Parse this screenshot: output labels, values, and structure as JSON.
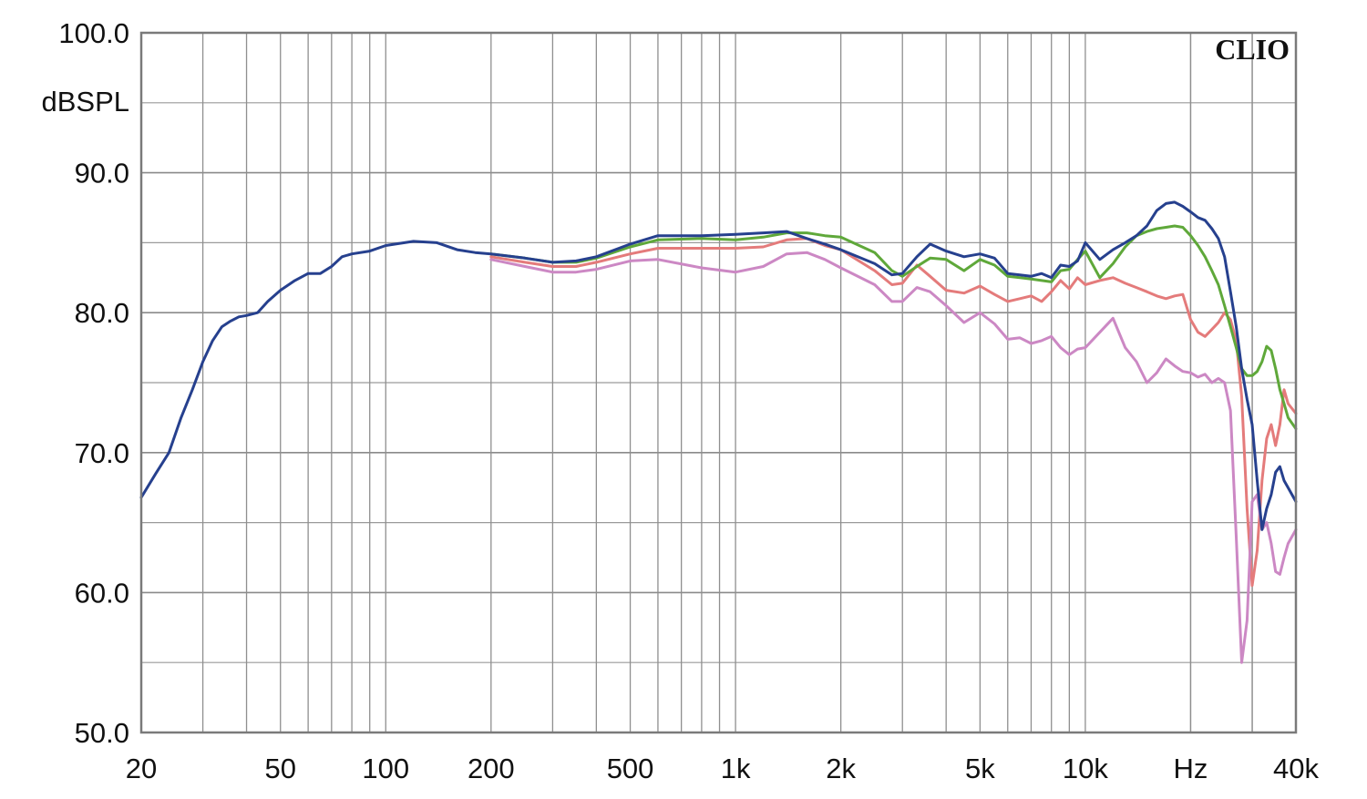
{
  "chart_data": {
    "type": "line",
    "title": "",
    "watermark": "CLIO",
    "ylabel": "dBSPL",
    "xunit": "Hz",
    "x_scale": "log",
    "xlim": [
      20,
      40000
    ],
    "ylim": [
      50,
      100
    ],
    "grid": true,
    "y_ticks": [
      {
        "value": 100,
        "label": "100.0"
      },
      {
        "value": 90,
        "label": "90.0"
      },
      {
        "value": 80,
        "label": "80.0"
      },
      {
        "value": 70,
        "label": "70.0"
      },
      {
        "value": 60,
        "label": "60.0"
      },
      {
        "value": 50,
        "label": "50.0"
      }
    ],
    "x_ticks": [
      {
        "value": 20,
        "label": "20"
      },
      {
        "value": 50,
        "label": "50"
      },
      {
        "value": 100,
        "label": "100"
      },
      {
        "value": 200,
        "label": "200"
      },
      {
        "value": 500,
        "label": "500"
      },
      {
        "value": 1000,
        "label": "1k"
      },
      {
        "value": 2000,
        "label": "2k"
      },
      {
        "value": 5000,
        "label": "5k"
      },
      {
        "value": 10000,
        "label": "10k"
      },
      {
        "value": 20000,
        "label": "Hz"
      },
      {
        "value": 40000,
        "label": "40k"
      }
    ],
    "series": [
      {
        "color": "#e47b7b",
        "points": [
          [
            200,
            84.0
          ],
          [
            250,
            83.6
          ],
          [
            300,
            83.3
          ],
          [
            350,
            83.3
          ],
          [
            400,
            83.6
          ],
          [
            500,
            84.2
          ],
          [
            600,
            84.6
          ],
          [
            800,
            84.6
          ],
          [
            1000,
            84.6
          ],
          [
            1200,
            84.7
          ],
          [
            1400,
            85.2
          ],
          [
            1600,
            85.3
          ],
          [
            1800,
            84.8
          ],
          [
            2000,
            84.5
          ],
          [
            2500,
            83.0
          ],
          [
            2800,
            82.0
          ],
          [
            3000,
            82.1
          ],
          [
            3300,
            83.4
          ],
          [
            3600,
            82.6
          ],
          [
            4000,
            81.6
          ],
          [
            4500,
            81.4
          ],
          [
            5000,
            81.9
          ],
          [
            5500,
            81.3
          ],
          [
            6000,
            80.8
          ],
          [
            6500,
            81.0
          ],
          [
            7000,
            81.2
          ],
          [
            7500,
            80.8
          ],
          [
            8000,
            81.5
          ],
          [
            8500,
            82.3
          ],
          [
            9000,
            81.7
          ],
          [
            9500,
            82.5
          ],
          [
            10000,
            82.0
          ],
          [
            11000,
            82.3
          ],
          [
            12000,
            82.5
          ],
          [
            13000,
            82.1
          ],
          [
            14000,
            81.8
          ],
          [
            15000,
            81.5
          ],
          [
            16000,
            81.2
          ],
          [
            17000,
            81.0
          ],
          [
            18000,
            81.2
          ],
          [
            19000,
            81.3
          ],
          [
            20000,
            79.5
          ],
          [
            21000,
            78.6
          ],
          [
            22000,
            78.3
          ],
          [
            23000,
            78.8
          ],
          [
            24000,
            79.3
          ],
          [
            25000,
            80.0
          ],
          [
            26000,
            79.5
          ],
          [
            27000,
            78.0
          ],
          [
            28000,
            74.0
          ],
          [
            29000,
            66.0
          ],
          [
            30000,
            60.5
          ],
          [
            31000,
            63.0
          ],
          [
            32000,
            68.0
          ],
          [
            33000,
            71.0
          ],
          [
            34000,
            72.0
          ],
          [
            35000,
            70.5
          ],
          [
            36000,
            72.0
          ],
          [
            37000,
            74.5
          ],
          [
            38000,
            73.5
          ],
          [
            40000,
            72.8
          ]
        ]
      },
      {
        "color": "#cc88c4",
        "points": [
          [
            200,
            83.8
          ],
          [
            250,
            83.3
          ],
          [
            300,
            82.9
          ],
          [
            350,
            82.9
          ],
          [
            400,
            83.1
          ],
          [
            500,
            83.7
          ],
          [
            600,
            83.8
          ],
          [
            800,
            83.2
          ],
          [
            1000,
            82.9
          ],
          [
            1200,
            83.3
          ],
          [
            1400,
            84.2
          ],
          [
            1600,
            84.3
          ],
          [
            1800,
            83.8
          ],
          [
            2000,
            83.2
          ],
          [
            2500,
            82.0
          ],
          [
            2800,
            80.8
          ],
          [
            3000,
            80.8
          ],
          [
            3300,
            81.8
          ],
          [
            3600,
            81.5
          ],
          [
            4000,
            80.5
          ],
          [
            4500,
            79.3
          ],
          [
            5000,
            80.0
          ],
          [
            5500,
            79.2
          ],
          [
            6000,
            78.1
          ],
          [
            6500,
            78.2
          ],
          [
            7000,
            77.8
          ],
          [
            7500,
            78.0
          ],
          [
            8000,
            78.3
          ],
          [
            8500,
            77.5
          ],
          [
            9000,
            77.0
          ],
          [
            9500,
            77.4
          ],
          [
            10000,
            77.5
          ],
          [
            11000,
            78.6
          ],
          [
            12000,
            79.6
          ],
          [
            13000,
            77.5
          ],
          [
            14000,
            76.5
          ],
          [
            15000,
            75.0
          ],
          [
            16000,
            75.7
          ],
          [
            17000,
            76.7
          ],
          [
            18000,
            76.2
          ],
          [
            19000,
            75.8
          ],
          [
            20000,
            75.7
          ],
          [
            21000,
            75.4
          ],
          [
            22000,
            75.6
          ],
          [
            23000,
            75.0
          ],
          [
            24000,
            75.3
          ],
          [
            25000,
            75.0
          ],
          [
            26000,
            73.0
          ],
          [
            27000,
            64.0
          ],
          [
            28000,
            55.0
          ],
          [
            29000,
            58.0
          ],
          [
            30000,
            66.5
          ],
          [
            31000,
            67.0
          ],
          [
            32000,
            64.5
          ],
          [
            33000,
            65.0
          ],
          [
            34000,
            63.5
          ],
          [
            35000,
            61.5
          ],
          [
            36000,
            61.3
          ],
          [
            37000,
            62.5
          ],
          [
            38000,
            63.5
          ],
          [
            40000,
            64.5
          ]
        ]
      },
      {
        "color": "#5fa83a",
        "points": [
          [
            200,
            84.2
          ],
          [
            250,
            83.9
          ],
          [
            300,
            83.6
          ],
          [
            350,
            83.6
          ],
          [
            400,
            83.9
          ],
          [
            500,
            84.7
          ],
          [
            600,
            85.2
          ],
          [
            800,
            85.3
          ],
          [
            1000,
            85.2
          ],
          [
            1200,
            85.4
          ],
          [
            1400,
            85.7
          ],
          [
            1600,
            85.7
          ],
          [
            1800,
            85.5
          ],
          [
            2000,
            85.4
          ],
          [
            2500,
            84.3
          ],
          [
            2800,
            83.0
          ],
          [
            3000,
            82.6
          ],
          [
            3300,
            83.3
          ],
          [
            3600,
            83.9
          ],
          [
            4000,
            83.8
          ],
          [
            4500,
            83.0
          ],
          [
            5000,
            83.8
          ],
          [
            5500,
            83.4
          ],
          [
            6000,
            82.6
          ],
          [
            6500,
            82.5
          ],
          [
            7000,
            82.4
          ],
          [
            7500,
            82.3
          ],
          [
            8000,
            82.2
          ],
          [
            8500,
            83.0
          ],
          [
            9000,
            83.1
          ],
          [
            9500,
            83.8
          ],
          [
            10000,
            84.4
          ],
          [
            11000,
            82.5
          ],
          [
            12000,
            83.5
          ],
          [
            13000,
            84.7
          ],
          [
            14000,
            85.5
          ],
          [
            15000,
            85.8
          ],
          [
            16000,
            86.0
          ],
          [
            17000,
            86.1
          ],
          [
            18000,
            86.2
          ],
          [
            19000,
            86.1
          ],
          [
            20000,
            85.5
          ],
          [
            21000,
            84.8
          ],
          [
            22000,
            84.0
          ],
          [
            23000,
            83.0
          ],
          [
            24000,
            82.0
          ],
          [
            25000,
            80.5
          ],
          [
            26000,
            79.0
          ],
          [
            27000,
            77.5
          ],
          [
            28000,
            76.0
          ],
          [
            29000,
            75.5
          ],
          [
            30000,
            75.5
          ],
          [
            31000,
            75.8
          ],
          [
            32000,
            76.5
          ],
          [
            33000,
            77.6
          ],
          [
            34000,
            77.3
          ],
          [
            35000,
            76.0
          ],
          [
            36000,
            74.5
          ],
          [
            37000,
            73.5
          ],
          [
            38000,
            72.5
          ],
          [
            40000,
            71.7
          ]
        ]
      },
      {
        "color": "#26408e",
        "points": [
          [
            20,
            66.8
          ],
          [
            22,
            68.5
          ],
          [
            24,
            70.0
          ],
          [
            26,
            72.5
          ],
          [
            28,
            74.5
          ],
          [
            30,
            76.5
          ],
          [
            32,
            78.0
          ],
          [
            34,
            79.0
          ],
          [
            36,
            79.4
          ],
          [
            38,
            79.7
          ],
          [
            40,
            79.8
          ],
          [
            43,
            80.0
          ],
          [
            46,
            80.8
          ],
          [
            50,
            81.6
          ],
          [
            55,
            82.3
          ],
          [
            60,
            82.8
          ],
          [
            65,
            82.8
          ],
          [
            70,
            83.3
          ],
          [
            75,
            84.0
          ],
          [
            80,
            84.2
          ],
          [
            90,
            84.4
          ],
          [
            100,
            84.8
          ],
          [
            120,
            85.1
          ],
          [
            140,
            85.0
          ],
          [
            160,
            84.5
          ],
          [
            180,
            84.3
          ],
          [
            200,
            84.2
          ],
          [
            250,
            83.9
          ],
          [
            300,
            83.6
          ],
          [
            350,
            83.7
          ],
          [
            400,
            84.0
          ],
          [
            500,
            84.9
          ],
          [
            600,
            85.5
          ],
          [
            800,
            85.5
          ],
          [
            1000,
            85.6
          ],
          [
            1200,
            85.7
          ],
          [
            1400,
            85.8
          ],
          [
            1600,
            85.3
          ],
          [
            1800,
            84.9
          ],
          [
            2000,
            84.5
          ],
          [
            2500,
            83.5
          ],
          [
            2800,
            82.7
          ],
          [
            3000,
            82.8
          ],
          [
            3300,
            84.0
          ],
          [
            3600,
            84.9
          ],
          [
            4000,
            84.4
          ],
          [
            4500,
            84.0
          ],
          [
            5000,
            84.2
          ],
          [
            5500,
            83.9
          ],
          [
            6000,
            82.8
          ],
          [
            6500,
            82.7
          ],
          [
            7000,
            82.6
          ],
          [
            7500,
            82.8
          ],
          [
            8000,
            82.5
          ],
          [
            8500,
            83.4
          ],
          [
            9000,
            83.3
          ],
          [
            9500,
            83.7
          ],
          [
            10000,
            85.0
          ],
          [
            11000,
            83.8
          ],
          [
            12000,
            84.5
          ],
          [
            13000,
            85.0
          ],
          [
            14000,
            85.5
          ],
          [
            15000,
            86.2
          ],
          [
            16000,
            87.3
          ],
          [
            17000,
            87.8
          ],
          [
            18000,
            87.9
          ],
          [
            19000,
            87.6
          ],
          [
            20000,
            87.2
          ],
          [
            21000,
            86.8
          ],
          [
            22000,
            86.6
          ],
          [
            23000,
            86.0
          ],
          [
            24000,
            85.3
          ],
          [
            25000,
            84.0
          ],
          [
            26000,
            81.5
          ],
          [
            27000,
            79.0
          ],
          [
            28000,
            76.0
          ],
          [
            29000,
            73.8
          ],
          [
            30000,
            72.0
          ],
          [
            31000,
            68.0
          ],
          [
            32000,
            64.5
          ],
          [
            33000,
            66.0
          ],
          [
            34000,
            67.0
          ],
          [
            35000,
            68.6
          ],
          [
            36000,
            69.0
          ],
          [
            37000,
            68.0
          ],
          [
            38000,
            67.5
          ],
          [
            40000,
            66.5
          ]
        ]
      }
    ]
  }
}
